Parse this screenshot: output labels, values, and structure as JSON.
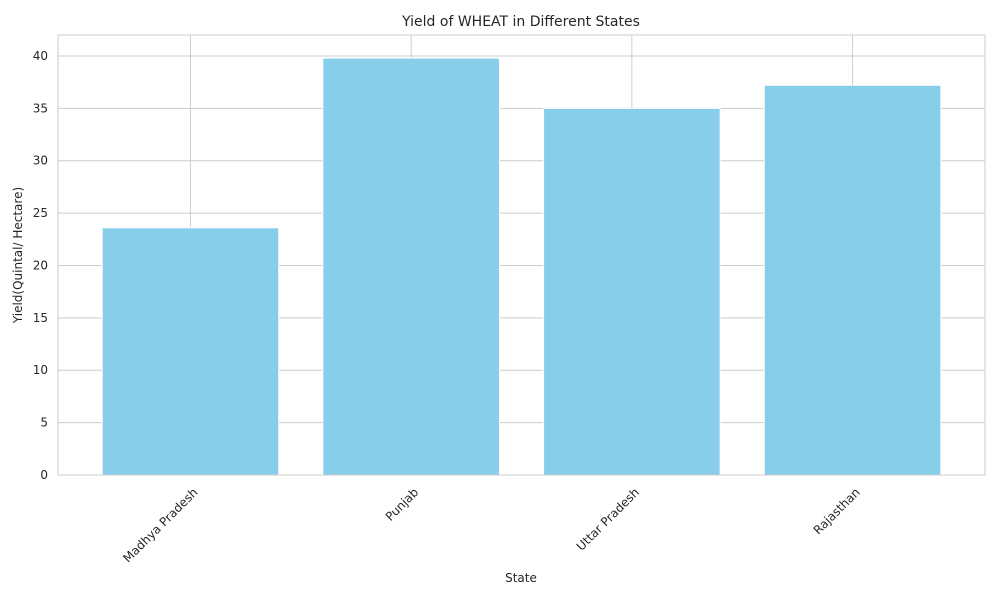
{
  "chart_data": {
    "type": "bar",
    "title": "Yield of WHEAT in Different States",
    "xlabel": "State",
    "ylabel": "Yield(Quintal/ Hectare)",
    "categories": [
      "Madhya Pradesh",
      "Punjab",
      "Uttar Pradesh",
      "Rajasthan"
    ],
    "values": [
      23.6,
      39.8,
      35.0,
      37.2
    ],
    "ylim": [
      0,
      42
    ],
    "yticks": [
      0,
      5,
      10,
      15,
      20,
      25,
      30,
      35,
      40
    ],
    "ytick_labels": [
      "0",
      "5",
      "10",
      "15",
      "20",
      "25",
      "30",
      "35",
      "40"
    ],
    "grid": true,
    "bar_color": "#87ceeb",
    "x_tick_rotation": 45
  }
}
